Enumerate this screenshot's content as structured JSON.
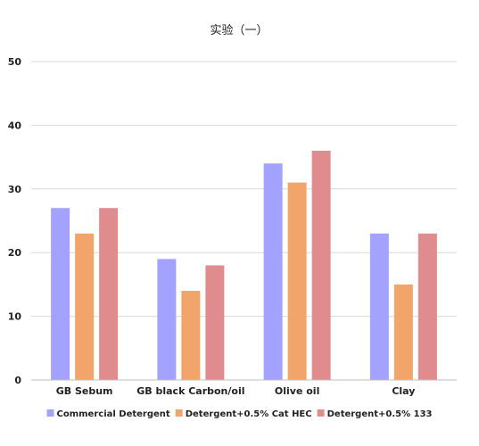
{
  "chart_data": {
    "type": "bar",
    "title": "实验（一）",
    "xlabel": "",
    "ylabel": "",
    "categories": [
      "GB Sebum",
      "GB black Carbon/oil",
      "Olive oil",
      "Clay"
    ],
    "yticks": [
      "0",
      "10",
      "20",
      "30",
      "40",
      "50"
    ],
    "ylim": [
      0,
      50
    ],
    "grid": true,
    "legend_position": "bottom",
    "series": [
      {
        "name": "Commercial Detergent",
        "color": "#a3a3ff",
        "values": [
          27,
          19,
          34,
          23
        ]
      },
      {
        "name": "Detergent+0.5% Cat HEC",
        "color": "#f2a56b",
        "values": [
          23,
          14,
          31,
          15
        ]
      },
      {
        "name": "Detergent+0.5% 133",
        "color": "#e08c8f",
        "values": [
          27,
          18,
          36,
          23
        ]
      }
    ]
  }
}
